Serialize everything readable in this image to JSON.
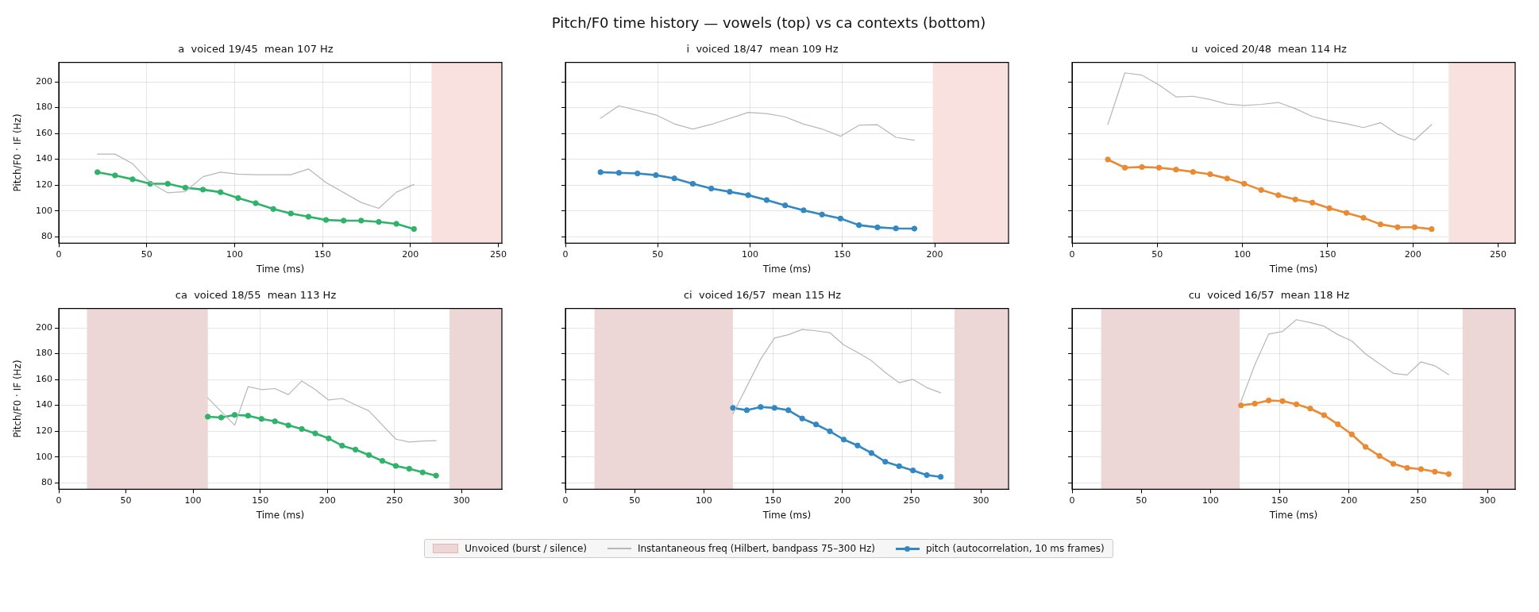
{
  "chart_data": [
    {
      "type": "line",
      "annotations": [
        "Pitch/F0 time history — vowels (top) vs ca contexts (bottom)"
      ],
      "title": "a  voiced 19/45  mean 107 Hz",
      "xlabel": "Time (ms)",
      "ylabel": "Pitch/F0 · IF (Hz)",
      "xlim": [
        0,
        252
      ],
      "xticks": [
        0,
        50,
        100,
        150,
        200,
        250
      ],
      "ylim": [
        75,
        215
      ],
      "yticks": [
        80,
        100,
        120,
        140,
        160,
        180,
        200
      ],
      "grid": true,
      "bands": [
        {
          "axis": "x",
          "from": 212,
          "to": 252,
          "color": "#f9e1df"
        }
      ],
      "series": [
        {
          "color": "#b3b8b8",
          "marker": "none",
          "x": [
            22,
            32,
            42,
            52,
            62,
            72,
            82,
            92,
            102,
            112,
            132,
            142,
            152,
            172,
            182,
            192,
            202
          ],
          "values": [
            144,
            144,
            136.5,
            122,
            114,
            115,
            126.5,
            130,
            128.5,
            128,
            128,
            132.5,
            122,
            106.5,
            102,
            114.5,
            120.5
          ]
        },
        {
          "color": "#2fb36a",
          "marker": "circle",
          "x": [
            22,
            32,
            42,
            52,
            62,
            72,
            82,
            92,
            102,
            112,
            122,
            132,
            142,
            152,
            162,
            172,
            182,
            192,
            202
          ],
          "values": [
            130,
            127.5,
            124.5,
            121,
            121,
            118,
            116.5,
            114.5,
            110,
            106,
            101.5,
            98,
            95.5,
            93,
            92.5,
            92.5,
            91.5,
            90,
            86
          ]
        }
      ]
    },
    {
      "type": "line",
      "title": "i  voiced 18/47  mean 109 Hz",
      "xlabel": "Time (ms)",
      "xlim": [
        0,
        240
      ],
      "xticks": [
        0,
        50,
        100,
        150,
        200
      ],
      "ylim": [
        75,
        215
      ],
      "yticks": [
        80,
        100,
        120,
        140,
        160,
        180,
        200
      ],
      "grid": true,
      "tick_labels": "x",
      "bands": [
        {
          "axis": "x",
          "from": 199,
          "to": 240,
          "color": "#f9e1df"
        }
      ],
      "series": [
        {
          "color": "#b3b8b8",
          "marker": "none",
          "x": [
            19,
            29,
            49,
            59,
            69,
            79,
            99,
            109,
            119,
            129,
            139,
            149,
            159,
            169,
            179,
            189
          ],
          "values": [
            171.8,
            181.4,
            174.3,
            167.4,
            163.4,
            167,
            176.3,
            175.3,
            172.8,
            167.2,
            163.4,
            157.8,
            166.4,
            166.7,
            157,
            154.7
          ]
        },
        {
          "color": "#3288c3",
          "marker": "circle",
          "x": [
            19,
            29,
            39,
            49,
            59,
            69,
            79,
            89,
            99,
            109,
            119,
            129,
            139,
            149,
            159,
            169,
            179,
            189
          ],
          "values": [
            130,
            129.5,
            129,
            127.7,
            125.2,
            121,
            117.3,
            114.8,
            112.2,
            108.4,
            104.3,
            100.5,
            97.2,
            94.1,
            89,
            87.3,
            86.5,
            86.3
          ]
        }
      ]
    },
    {
      "type": "line",
      "title": "u  voiced 20/48  mean 114 Hz",
      "xlabel": "Time (ms)",
      "xlim": [
        0,
        260
      ],
      "xticks": [
        0,
        50,
        100,
        150,
        200,
        250
      ],
      "ylim": [
        75,
        215
      ],
      "yticks": [
        80,
        100,
        120,
        140,
        160,
        180,
        200
      ],
      "grid": true,
      "tick_labels": "x",
      "bands": [
        {
          "axis": "x",
          "from": 221,
          "to": 260,
          "color": "#f9e1df"
        }
      ],
      "series": [
        {
          "color": "#b3b8b8",
          "marker": "none",
          "x": [
            21,
            31,
            41,
            51,
            61,
            71,
            81,
            91,
            101,
            111,
            121,
            131,
            141,
            151,
            161,
            171,
            181,
            191,
            201,
            211
          ],
          "values": [
            167,
            206.9,
            205.1,
            197.5,
            188.3,
            188.8,
            186.3,
            182.7,
            181.7,
            182.5,
            184,
            179.2,
            173.1,
            169.8,
            167.5,
            164.5,
            168.3,
            159.4,
            154.8,
            166.8
          ]
        },
        {
          "color": "#ea8a33",
          "marker": "circle",
          "x": [
            21,
            31,
            41,
            51,
            61,
            71,
            81,
            91,
            101,
            111,
            121,
            131,
            141,
            151,
            161,
            171,
            181,
            191,
            201,
            211
          ],
          "values": [
            139.8,
            133.5,
            134,
            133.5,
            132,
            130.2,
            128.4,
            125.1,
            121.1,
            116.2,
            112.2,
            108.9,
            106.4,
            102.1,
            98.5,
            94.7,
            89.6,
            87.4,
            87.4,
            85.9
          ]
        }
      ]
    },
    {
      "type": "line",
      "title": "ca  voiced 18/55  mean 113 Hz",
      "xlabel": "Time (ms)",
      "ylabel": "Pitch/F0 · IF (Hz)",
      "xlim": [
        0,
        330
      ],
      "xticks": [
        0,
        50,
        100,
        150,
        200,
        250,
        300
      ],
      "ylim": [
        75,
        215
      ],
      "yticks": [
        80,
        100,
        120,
        140,
        160,
        180,
        200
      ],
      "grid": true,
      "bands": [
        {
          "axis": "x",
          "from": 21,
          "to": 111,
          "color": "#edd6d6"
        },
        {
          "axis": "x",
          "from": 291,
          "to": 330,
          "color": "#edd6d6"
        }
      ],
      "series": [
        {
          "color": "#b3b8b8",
          "marker": "none",
          "x": [
            111,
            131,
            141,
            151,
            161,
            171,
            181,
            191,
            201,
            211,
            221,
            231,
            251,
            261,
            271,
            281
          ],
          "values": [
            145.7,
            124.6,
            154.4,
            152.2,
            153,
            148.3,
            158.9,
            152.2,
            144.1,
            145.3,
            140.4,
            135.7,
            113.8,
            111.6,
            112.4,
            112.7
          ]
        },
        {
          "color": "#2fb36a",
          "marker": "circle",
          "x": [
            111,
            121,
            131,
            141,
            151,
            161,
            171,
            181,
            191,
            201,
            211,
            221,
            231,
            241,
            251,
            261,
            271,
            281
          ],
          "values": [
            131.2,
            130.6,
            132.6,
            132,
            129.5,
            127.6,
            124.5,
            121.7,
            118.3,
            114.4,
            108.8,
            105.7,
            101.5,
            97,
            93.1,
            90.9,
            88.1,
            85.6
          ]
        }
      ]
    },
    {
      "type": "line",
      "title": "ci  voiced 16/57  mean 115 Hz",
      "xlabel": "Time (ms)",
      "xlim": [
        0,
        320
      ],
      "xticks": [
        0,
        50,
        100,
        150,
        200,
        250,
        300
      ],
      "ylim": [
        75,
        215
      ],
      "yticks": [
        80,
        100,
        120,
        140,
        160,
        180,
        200
      ],
      "grid": true,
      "tick_labels": "x",
      "legend": "bottom",
      "bands": [
        {
          "axis": "x",
          "from": 21,
          "to": 121,
          "color": "#edd6d6",
          "label": "Unvoiced (burst / silence)"
        },
        {
          "axis": "x",
          "from": 281,
          "to": 320,
          "color": "#edd6d6"
        }
      ],
      "series": [
        {
          "name": "Instantaneous freq (Hilbert, bandpass 75–300 Hz)",
          "color": "#b3b8b8",
          "marker": "none",
          "x": [
            121,
            141,
            151,
            161,
            171,
            181,
            191,
            201,
            211,
            221,
            231,
            241,
            251,
            261,
            271
          ],
          "values": [
            133.4,
            175.8,
            192.1,
            194.7,
            198.7,
            197.7,
            196.2,
            186.8,
            180.9,
            174.6,
            165.4,
            157.5,
            160.1,
            153.7,
            149.7
          ]
        },
        {
          "name": "pitch (autocorrelation, 10 ms frames)",
          "color": "#3288c3",
          "marker": "circle",
          "x": [
            121,
            131,
            141,
            151,
            161,
            171,
            181,
            191,
            201,
            211,
            221,
            231,
            241,
            251,
            261,
            271
          ],
          "values": [
            138,
            136.2,
            138.7,
            138,
            136.2,
            129.8,
            125.2,
            119.9,
            113.5,
            108.9,
            103.1,
            96.3,
            92.9,
            89.6,
            86,
            84.6
          ]
        }
      ]
    },
    {
      "type": "line",
      "title": "cu  voiced 16/57  mean 118 Hz",
      "xlabel": "Time (ms)",
      "xlim": [
        0,
        320
      ],
      "xticks": [
        0,
        50,
        100,
        150,
        200,
        250,
        300
      ],
      "ylim": [
        75,
        215
      ],
      "yticks": [
        80,
        100,
        120,
        140,
        160,
        180,
        200
      ],
      "grid": true,
      "tick_labels": "x",
      "bands": [
        {
          "axis": "x",
          "from": 21,
          "to": 121,
          "color": "#edd6d6"
        },
        {
          "axis": "x",
          "from": 282,
          "to": 320,
          "color": "#edd6d6"
        }
      ],
      "series": [
        {
          "color": "#b3b8b8",
          "marker": "none",
          "x": [
            122,
            132,
            142,
            152,
            162,
            172,
            182,
            192,
            202,
            212,
            222,
            232,
            242,
            252,
            262,
            272
          ],
          "values": [
            143,
            171.4,
            195.2,
            197.2,
            206.3,
            204.1,
            201.3,
            194.7,
            189.9,
            179.7,
            172.2,
            164.8,
            163.5,
            173.7,
            170.6,
            163.8
          ]
        },
        {
          "color": "#ea8a33",
          "marker": "circle",
          "x": [
            122,
            132,
            142,
            152,
            162,
            172,
            182,
            192,
            202,
            212,
            222,
            232,
            242,
            252,
            262,
            272
          ],
          "values": [
            140,
            141.3,
            143.8,
            143.3,
            140.8,
            137.5,
            132.4,
            125.3,
            117.5,
            107.8,
            100.8,
            94.7,
            91.6,
            90.6,
            88.6,
            86.8
          ]
        }
      ]
    }
  ]
}
